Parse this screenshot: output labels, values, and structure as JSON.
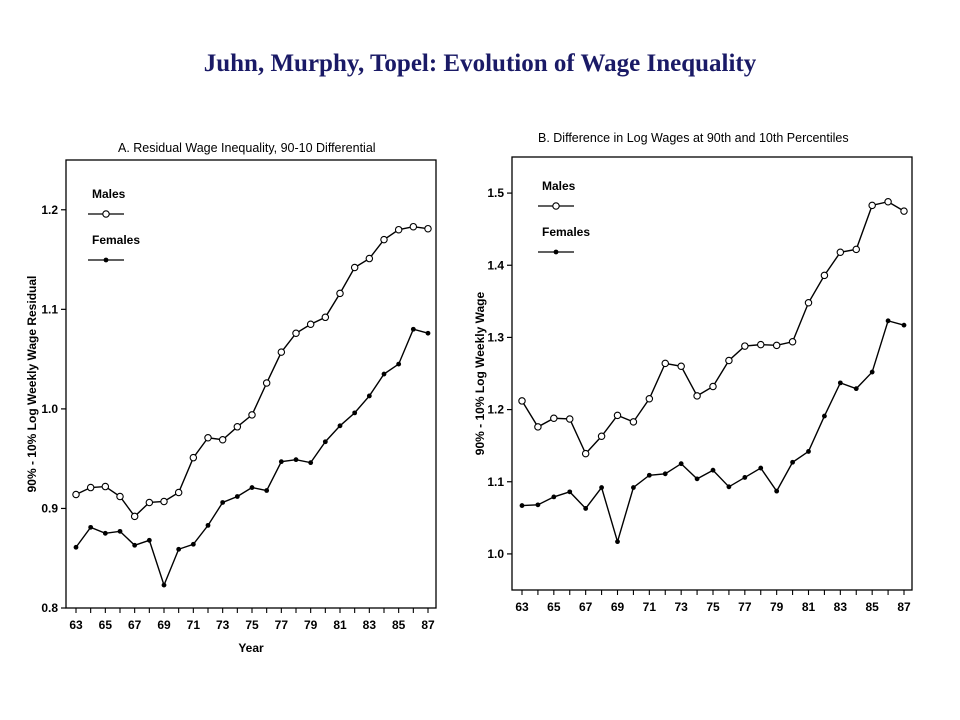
{
  "title": "Juhn, Murphy, Topel:  Evolution of Wage Inequality",
  "chart_data": [
    {
      "type": "line",
      "title": "A. Residual Wage Inequality, 90-10 Differential",
      "xlabel": "Year",
      "ylabel": "90% - 10% Log Weekly Wage Residual",
      "xlim": [
        63,
        87
      ],
      "ylim": [
        0.8,
        1.25
      ],
      "xticks": [
        "63",
        "65",
        "67",
        "69",
        "71",
        "73",
        "75",
        "77",
        "79",
        "81",
        "83",
        "85",
        "87"
      ],
      "yticks": [
        "0.8",
        "0.9",
        "1.0",
        "1.1",
        "1.2"
      ],
      "legend": "top-left",
      "x": [
        63,
        64,
        65,
        66,
        67,
        68,
        69,
        70,
        71,
        72,
        73,
        74,
        75,
        76,
        77,
        78,
        79,
        80,
        81,
        82,
        83,
        84,
        85,
        86,
        87
      ],
      "series": [
        {
          "name": "Males",
          "marker": "open-circle",
          "values": [
            0.914,
            0.921,
            0.922,
            0.912,
            0.892,
            0.906,
            0.907,
            0.916,
            0.951,
            0.971,
            0.969,
            0.982,
            0.994,
            1.026,
            1.057,
            1.076,
            1.085,
            1.092,
            1.116,
            1.142,
            1.151,
            1.17,
            1.18,
            1.183,
            1.181
          ]
        },
        {
          "name": "Females",
          "marker": "filled-dot",
          "values": [
            0.861,
            0.881,
            0.875,
            0.877,
            0.863,
            0.868,
            0.823,
            0.859,
            0.864,
            0.883,
            0.906,
            0.912,
            0.921,
            0.918,
            0.947,
            0.949,
            0.946,
            0.967,
            0.983,
            0.996,
            1.013,
            1.035,
            1.045,
            1.08,
            1.076
          ]
        }
      ]
    },
    {
      "type": "line",
      "title": "B. Difference in Log Wages at 90th and 10th Percentiles",
      "xlabel": "",
      "ylabel": "90% - 10% Log Weekly Wage",
      "xlim": [
        63,
        87
      ],
      "ylim": [
        0.95,
        1.55
      ],
      "xticks": [
        "63",
        "65",
        "67",
        "69",
        "71",
        "73",
        "75",
        "77",
        "79",
        "81",
        "83",
        "85",
        "87"
      ],
      "yticks": [
        "1.0",
        "1.1",
        "1.2",
        "1.3",
        "1.4",
        "1.5"
      ],
      "legend": "top-left",
      "x": [
        63,
        64,
        65,
        66,
        67,
        68,
        69,
        70,
        71,
        72,
        73,
        74,
        75,
        76,
        77,
        78,
        79,
        80,
        81,
        82,
        83,
        84,
        85,
        86,
        87
      ],
      "series": [
        {
          "name": "Males",
          "marker": "open-circle",
          "values": [
            1.212,
            1.176,
            1.188,
            1.187,
            1.139,
            1.163,
            1.192,
            1.183,
            1.215,
            1.264,
            1.26,
            1.219,
            1.232,
            1.268,
            1.288,
            1.29,
            1.289,
            1.294,
            1.348,
            1.386,
            1.418,
            1.422,
            1.483,
            1.488,
            1.475
          ]
        },
        {
          "name": "Females",
          "marker": "filled-dot",
          "values": [
            1.067,
            1.068,
            1.079,
            1.086,
            1.063,
            1.092,
            1.017,
            1.092,
            1.109,
            1.111,
            1.125,
            1.104,
            1.116,
            1.093,
            1.106,
            1.119,
            1.087,
            1.127,
            1.142,
            1.191,
            1.237,
            1.229,
            1.252,
            1.323,
            1.317
          ]
        }
      ]
    }
  ]
}
